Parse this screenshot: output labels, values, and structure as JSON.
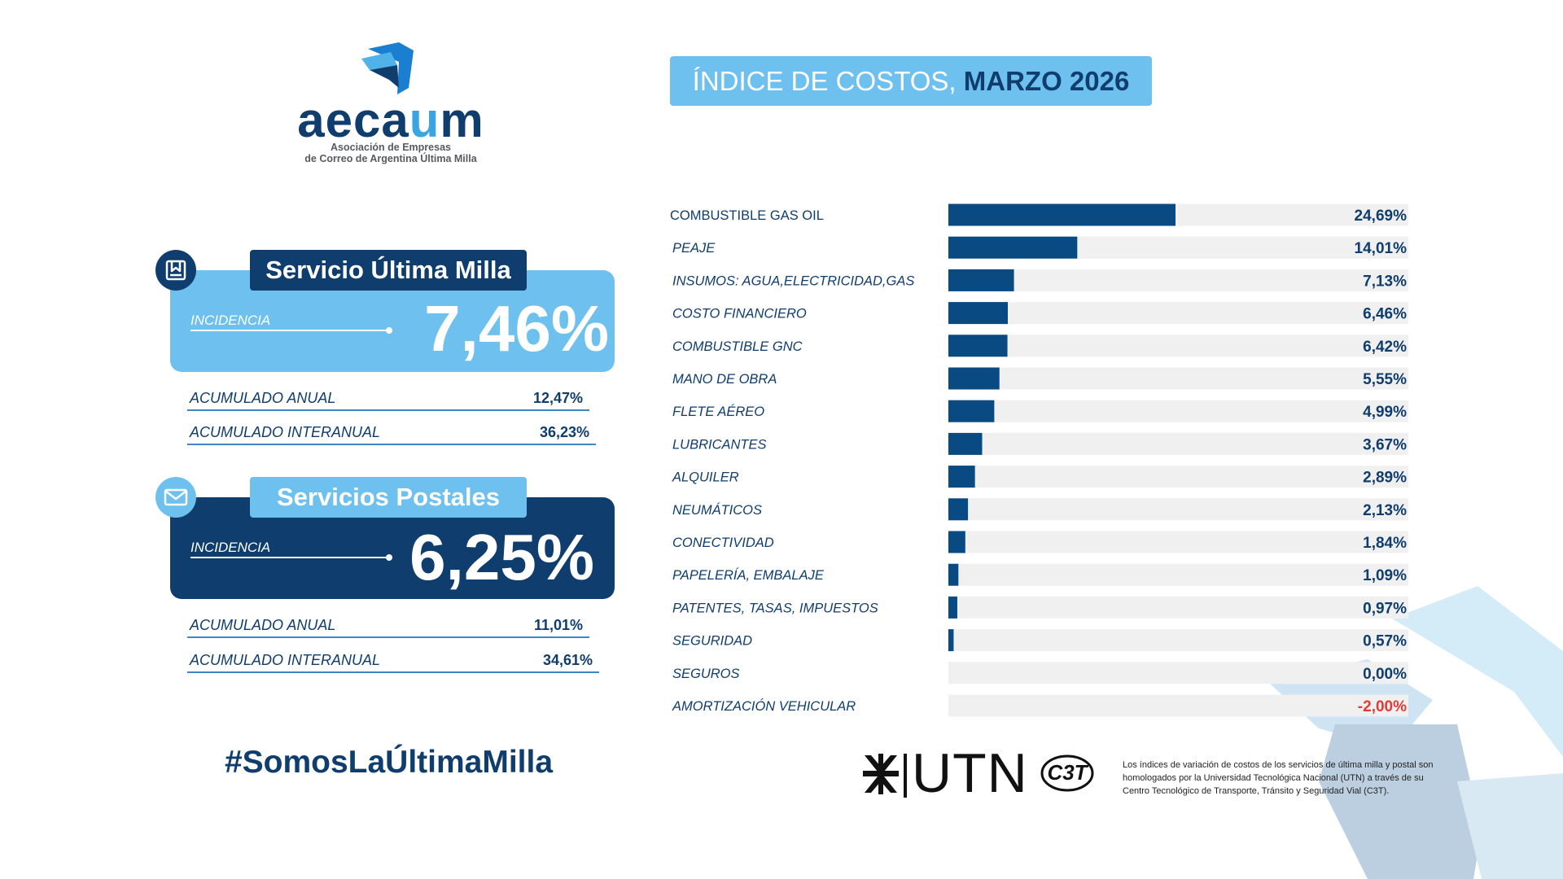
{
  "logo": {
    "word_prefix": "aeca",
    "word_highlight": "u",
    "word_suffix": "m",
    "subtitle_line1": "Asociación de Empresas",
    "subtitle_line2": "de Correo de Argentina Última Milla"
  },
  "header": {
    "title_light": "ÍNDICE DE COSTOS, ",
    "title_strong": "MARZO 2026"
  },
  "colors": {
    "dark_blue": "#0f3d6e",
    "light_blue": "#6ec1ee",
    "bar_track": "#f0f0f0",
    "bar_fill": "#0a4a82",
    "negative": "#e53935"
  },
  "cards": [
    {
      "title": "Servicio Última Milla",
      "icon": "box-icon",
      "incidencia_label": "INCIDENCIA",
      "incidencia_value": "7,46%",
      "rows": [
        {
          "label": "ACUMULADO ANUAL",
          "value": "12,47%"
        },
        {
          "label": "ACUMULADO INTERANUAL",
          "value": "36,23%"
        }
      ]
    },
    {
      "title": "Servicios Postales",
      "icon": "envelope-icon",
      "incidencia_label": "INCIDENCIA",
      "incidencia_value": "6,25%",
      "rows": [
        {
          "label": "ACUMULADO ANUAL",
          "value": "11,01%"
        },
        {
          "label": "ACUMULADO INTERANUAL",
          "value": "34,61%"
        }
      ]
    }
  ],
  "hashtag": "#SomosLaÚltimaMilla",
  "chart_data": {
    "type": "bar",
    "orientation": "horizontal",
    "xlim": [
      0,
      50
    ],
    "categories": [
      "COMBUSTIBLE GAS OIL",
      "PEAJE",
      "INSUMOS: AGUA,ELECTRICIDAD,GAS",
      "COSTO FINANCIERO",
      "COMBUSTIBLE GNC",
      "MANO DE OBRA",
      "FLETE AÉREO",
      "LUBRICANTES",
      "ALQUILER",
      "NEUMÁTICOS",
      "CONECTIVIDAD",
      "PAPELERÍA, EMBALAJE",
      "PATENTES, TASAS, IMPUESTOS",
      "SEGURIDAD",
      "SEGUROS",
      "AMORTIZACIÓN VEHICULAR"
    ],
    "values": [
      24.69,
      14.01,
      7.13,
      6.46,
      6.42,
      5.55,
      4.99,
      3.67,
      2.89,
      2.13,
      1.84,
      1.09,
      0.97,
      0.57,
      0.0,
      -2.0
    ],
    "value_labels": [
      "24,69%",
      "14,01%",
      "7,13%",
      "6,46%",
      "6,42%",
      "5,55%",
      "4,99%",
      "3,67%",
      "2,89%",
      "2,13%",
      "1,84%",
      "1,09%",
      "0,97%",
      "0,57%",
      "0,00%",
      "-2,00%"
    ]
  },
  "footer": {
    "utn_text": "UTN",
    "c3t_text": "C3T",
    "note": "Los índices de variación de costos de los servicios de última milla y postal son homologados por la Universidad Tecnológica Nacional (UTN) a través de su Centro Tecnológico de Transporte, Tránsito y Seguridad Vial (C3T)."
  }
}
